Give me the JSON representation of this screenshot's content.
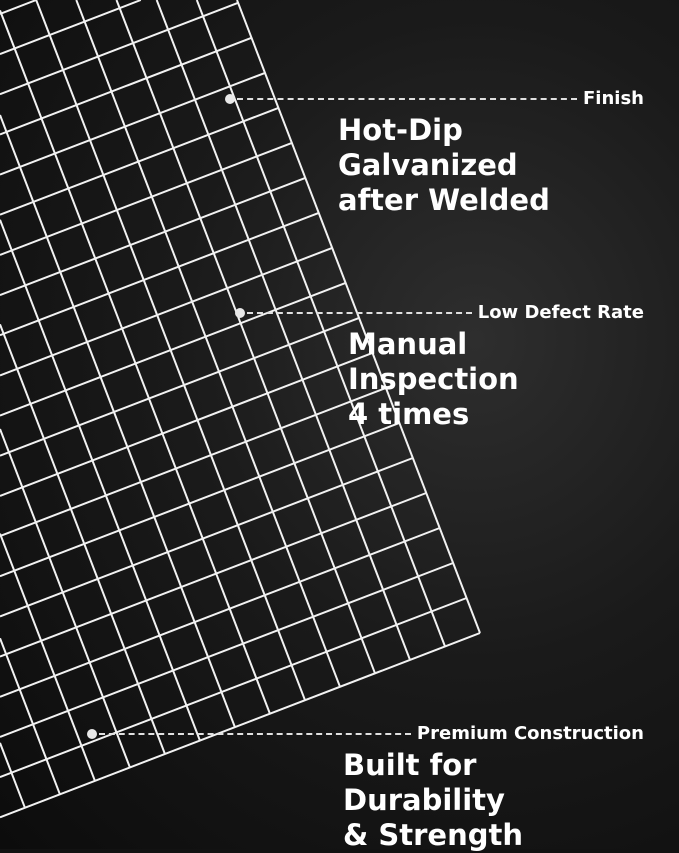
{
  "colors": {
    "background": "#121212",
    "mesh": "#f2f2f2",
    "text": "#ffffff"
  },
  "callouts": [
    {
      "label": "Finish",
      "headline": [
        "Hot-Dip Galvanized",
        "after Welded"
      ]
    },
    {
      "label": "Low Defect Rate",
      "headline": [
        "Manual Inspection",
        "4 times"
      ]
    },
    {
      "label": "Premium Construction",
      "headline": [
        "Built for Durability",
        "& Strength"
      ]
    }
  ]
}
